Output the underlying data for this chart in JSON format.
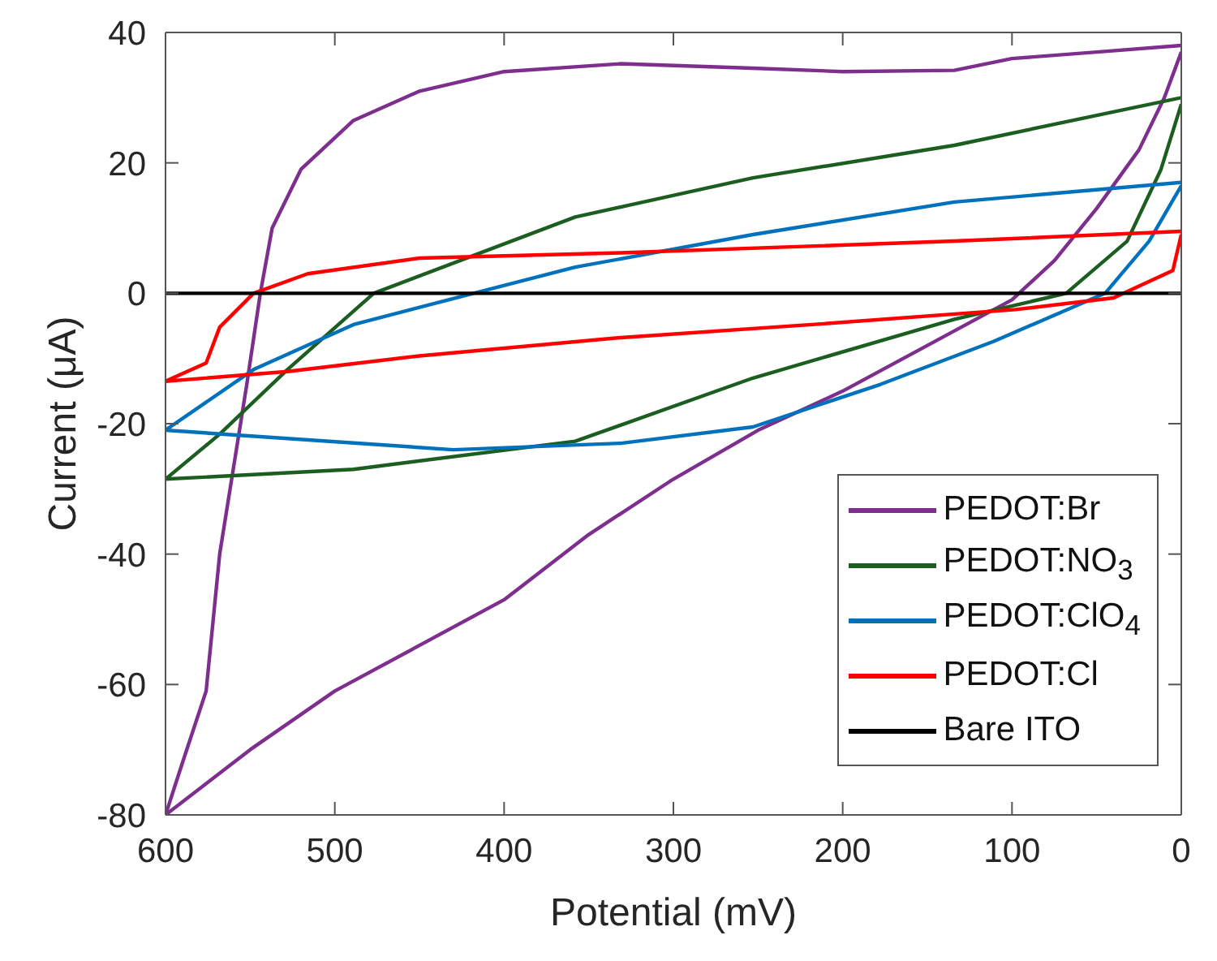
{
  "chart_data": {
    "type": "line",
    "xlabel": "Potential (mV)",
    "ylabel": "Current (μA)",
    "xlim": [
      600,
      0
    ],
    "ylim": [
      -80,
      40
    ],
    "xticks": [
      600,
      500,
      400,
      300,
      200,
      100,
      0
    ],
    "yticks": [
      -80,
      -60,
      -40,
      -20,
      0,
      20,
      40
    ],
    "grid": false,
    "legend": "bottom right",
    "marker": "none",
    "line_style": "solid",
    "series": [
      {
        "name": "PEDOT:Br",
        "color": "#7e2f8e",
        "x": [
          0,
          50,
          100,
          134,
          200,
          250,
          331,
          400,
          450,
          489,
          520,
          537,
          544,
          552,
          560,
          568,
          576,
          590,
          600,
          550,
          500,
          450,
          400,
          350,
          300,
          250,
          200,
          150,
          100,
          75,
          50,
          25,
          10,
          0
        ],
        "values": [
          38,
          37,
          36,
          34.2,
          34,
          34.5,
          35.2,
          34,
          31,
          26.5,
          19,
          10,
          0,
          -14,
          -27,
          -40,
          -61,
          -72,
          -80,
          -70,
          -61,
          -54,
          -47,
          -37,
          -28.5,
          -21,
          -15,
          -8,
          -1,
          5,
          13,
          22,
          30,
          37
        ]
      },
      {
        "name": "PEDOT:NO$_{3}$",
        "color": "#1b5e20",
        "x": [
          0,
          134,
          253,
          358,
          477,
          528,
          568,
          600,
          489,
          358,
          253,
          134,
          68,
          32,
          12,
          0
        ],
        "values": [
          30,
          22.7,
          17.7,
          11.7,
          0,
          -11.7,
          -21.6,
          -28.5,
          -27,
          -22.7,
          -13,
          -4,
          0,
          8,
          19,
          29
        ]
      },
      {
        "name": "PEDOT:ClO$_{4}$",
        "color": "#0072bd",
        "x": [
          0,
          134,
          253,
          358,
          418,
          489,
          548,
          600,
          430,
          331,
          253,
          178,
          111,
          45,
          19,
          0
        ],
        "values": [
          17,
          14,
          9,
          4,
          0,
          -4.8,
          -11.7,
          -21,
          -24,
          -23,
          -20.5,
          -14,
          -7.4,
          0,
          8,
          16.5
        ]
      },
      {
        "name": "PEDOT:Cl",
        "color": "#ff0000",
        "x": [
          0,
          134,
          331,
          450,
          516,
          548,
          568,
          576,
          600,
          528,
          450,
          331,
          213,
          98,
          40,
          5,
          0
        ],
        "values": [
          9.5,
          8,
          6.2,
          5.4,
          3,
          0,
          -5.2,
          -10.7,
          -13.5,
          -12,
          -9.6,
          -6.8,
          -4.7,
          -2.5,
          -0.7,
          3.5,
          9
        ]
      },
      {
        "name": "Bare ITO",
        "color": "#000000",
        "x": [
          0,
          300,
          600
        ],
        "values": [
          0,
          0,
          0
        ]
      }
    ]
  }
}
